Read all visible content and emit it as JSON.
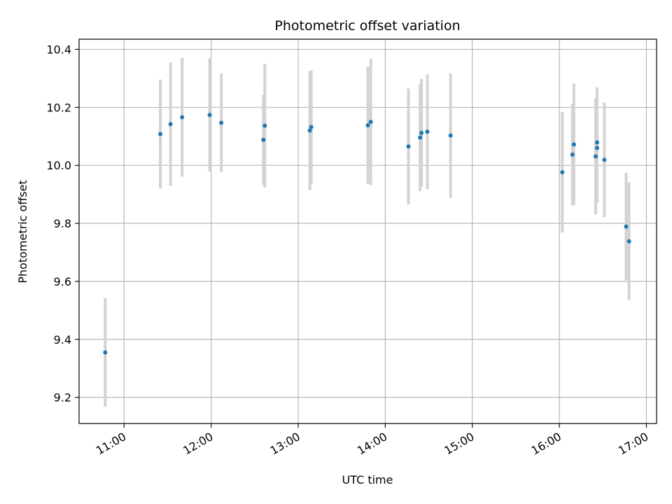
{
  "chart_data": {
    "type": "scatter",
    "title": "Photometric offset variation",
    "xlabel": "UTC time",
    "ylabel": "Photometric offset",
    "x_ticks": [
      "11:00",
      "12:00",
      "13:00",
      "14:00",
      "15:00",
      "16:00",
      "17:00"
    ],
    "y_ticks": [
      "9.2",
      "9.4",
      "9.6",
      "9.8",
      "10.0",
      "10.2",
      "10.4"
    ],
    "xlim": [
      "10:29",
      "17:07"
    ],
    "ylim": [
      9.11,
      10.435
    ],
    "grid": true,
    "colors": {
      "point": "#1f77b4",
      "errorbar": "#d3d3d3",
      "grid": "#b0b0b0"
    },
    "points": [
      {
        "x": "10:47",
        "y": 9.355,
        "err": 0.187
      },
      {
        "x": "11:25",
        "y": 10.108,
        "err": 0.188
      },
      {
        "x": "11:32",
        "y": 10.142,
        "err": 0.212
      },
      {
        "x": "11:40",
        "y": 10.166,
        "err": 0.205
      },
      {
        "x": "11:59",
        "y": 10.174,
        "err": 0.195
      },
      {
        "x": "12:07",
        "y": 10.147,
        "err": 0.17
      },
      {
        "x": "12:36",
        "y": 10.088,
        "err": 0.155
      },
      {
        "x": "12:37",
        "y": 10.137,
        "err": 0.213
      },
      {
        "x": "13:08",
        "y": 10.12,
        "err": 0.205
      },
      {
        "x": "13:09",
        "y": 10.132,
        "err": 0.195
      },
      {
        "x": "13:48",
        "y": 10.138,
        "err": 0.202
      },
      {
        "x": "13:50",
        "y": 10.15,
        "err": 0.218
      },
      {
        "x": "14:16",
        "y": 10.065,
        "err": 0.2
      },
      {
        "x": "14:24",
        "y": 10.096,
        "err": 0.185
      },
      {
        "x": "14:25",
        "y": 10.112,
        "err": 0.186
      },
      {
        "x": "14:29",
        "y": 10.116,
        "err": 0.198
      },
      {
        "x": "14:45",
        "y": 10.103,
        "err": 0.215
      },
      {
        "x": "16:02",
        "y": 9.976,
        "err": 0.208
      },
      {
        "x": "16:09",
        "y": 10.037,
        "err": 0.175
      },
      {
        "x": "16:10",
        "y": 10.072,
        "err": 0.21
      },
      {
        "x": "16:25",
        "y": 10.031,
        "err": 0.2
      },
      {
        "x": "16:26",
        "y": 10.06,
        "err": 0.19
      },
      {
        "x": "16:26",
        "y": 10.079,
        "err": 0.19
      },
      {
        "x": "16:31",
        "y": 10.019,
        "err": 0.198
      },
      {
        "x": "16:46",
        "y": 9.789,
        "err": 0.185
      },
      {
        "x": "16:48",
        "y": 9.738,
        "err": 0.203
      }
    ]
  }
}
